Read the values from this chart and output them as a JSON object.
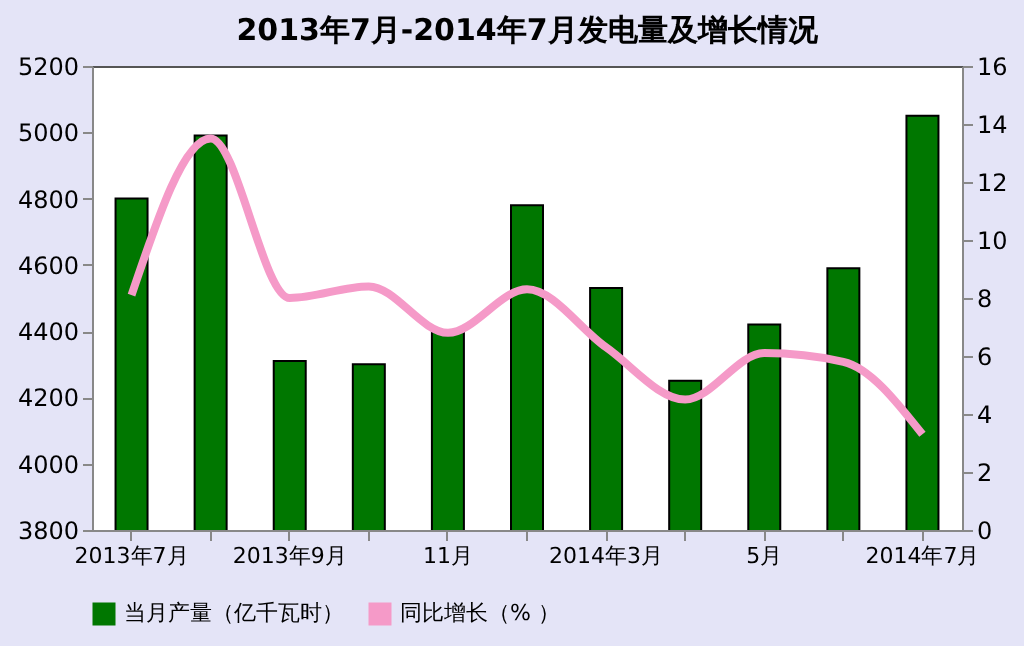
{
  "chart_data": {
    "type": "bar",
    "title": "2013年7月-2014年7月发电量及增长情况",
    "categories": [
      "2013年7月",
      null,
      "2013年9月",
      null,
      "11月",
      null,
      "2014年3月",
      null,
      "5月",
      null,
      "2014年7月"
    ],
    "series": [
      {
        "name": "当月产量（亿千瓦时）",
        "color": "#007700",
        "values": [
          4800,
          4990,
          4310,
          4300,
          4400,
          4780,
          4530,
          4250,
          4420,
          4590,
          5050
        ]
      },
      {
        "name": "同比增长（% ）",
        "type": "line",
        "axis": "y2",
        "color": "#f59ac8",
        "values": [
          8.1,
          13.5,
          8.0,
          8.4,
          6.8,
          8.3,
          6.3,
          4.5,
          6.1,
          5.8,
          3.3
        ]
      }
    ],
    "ylim": [
      3800,
      5200
    ],
    "yticks": [
      3800,
      4000,
      4200,
      4400,
      4600,
      4800,
      5000,
      5200
    ],
    "y2lim": [
      0,
      16
    ],
    "y2ticks": [
      0,
      2,
      4,
      6,
      8,
      10,
      12,
      14,
      16
    ],
    "grid": false,
    "legend": "bottom",
    "marker": "none",
    "line_style": "solid"
  }
}
